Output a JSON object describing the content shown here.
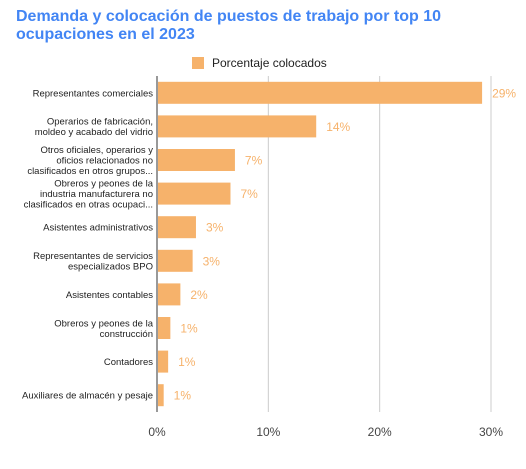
{
  "chart_data": {
    "type": "bar",
    "orientation": "horizontal",
    "title": "Demanda y colocación de puestos de trabajo por top 10 ocupaciones en el 2023",
    "categories": [
      [
        "Representantes comerciales"
      ],
      [
        "Operarios de fabricación,",
        "moldeo y acabado del vidrio"
      ],
      [
        "Otros oficiales, operarios y",
        "oficios relacionados no",
        "clasificados en otros grupos..."
      ],
      [
        "Obreros y peones de la",
        "industria manufacturera no",
        "clasificados en otras ocupaci..."
      ],
      [
        "Asistentes administrativos"
      ],
      [
        "Representantes de servicios",
        "especializados BPO"
      ],
      [
        "Asistentes contables"
      ],
      [
        "Obreros y peones de la",
        "construcción"
      ],
      [
        "Contadores"
      ],
      [
        "Auxiliares de almacén y pesaje"
      ]
    ],
    "series": [
      {
        "name": "Porcentaje colocados",
        "values": [
          29.2,
          14.3,
          7.0,
          6.6,
          3.5,
          3.2,
          2.1,
          1.2,
          1.0,
          0.6
        ],
        "labels": [
          "29%",
          "14%",
          "7%",
          "7%",
          "3%",
          "3%",
          "2%",
          "1%",
          "1%",
          "1%"
        ]
      }
    ],
    "xlim": [
      0,
      30
    ],
    "xticks": [
      0,
      10,
      20,
      30
    ],
    "xtick_labels": [
      "0%",
      "10%",
      "20%",
      "30%"
    ],
    "legend_position": "top",
    "grid": true,
    "colors": {
      "bar": "#f6b26b",
      "label": "#f6b26b",
      "grid": "#cccccc",
      "axis": "#333333",
      "title": "#4285f4"
    }
  }
}
